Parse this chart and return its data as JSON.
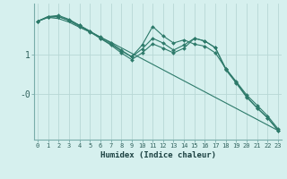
{
  "xlabel": "Humidex (Indice chaleur)",
  "background_color": "#d6f0ee",
  "grid_color": "#b8d8d5",
  "line_color": "#2d7a6a",
  "x_values": [
    0,
    1,
    2,
    3,
    4,
    5,
    6,
    7,
    8,
    9,
    10,
    11,
    12,
    13,
    14,
    15,
    16,
    17,
    18,
    19,
    20,
    21,
    22,
    23
  ],
  "series": [
    [
      1.85,
      1.95,
      1.92,
      1.83,
      1.7,
      1.58,
      1.45,
      1.32,
      1.18,
      1.04,
      0.9,
      0.76,
      0.62,
      0.48,
      0.34,
      0.2,
      0.06,
      -0.08,
      -0.22,
      -0.36,
      -0.5,
      -0.64,
      -0.78,
      -0.92
    ],
    [
      1.85,
      1.97,
      1.97,
      1.88,
      1.75,
      1.6,
      1.45,
      1.3,
      1.12,
      0.95,
      1.25,
      1.72,
      1.48,
      1.3,
      1.38,
      1.27,
      1.22,
      1.05,
      0.65,
      0.32,
      -0.02,
      -0.28,
      -0.55,
      -0.88
    ],
    [
      1.85,
      1.97,
      2.0,
      1.9,
      1.75,
      1.6,
      1.42,
      1.25,
      1.05,
      0.88,
      1.05,
      1.28,
      1.17,
      1.05,
      1.17,
      1.42,
      1.35,
      1.18,
      0.65,
      0.3,
      -0.06,
      -0.35,
      -0.6,
      -0.92
    ],
    [
      1.85,
      1.95,
      1.97,
      1.87,
      1.72,
      1.58,
      1.42,
      1.27,
      1.1,
      0.95,
      1.15,
      1.42,
      1.3,
      1.12,
      1.25,
      1.42,
      1.35,
      1.18,
      0.62,
      0.28,
      -0.08,
      -0.35,
      -0.6,
      -0.92
    ]
  ],
  "ylim": [
    -1.15,
    2.3
  ],
  "xlim": [
    -0.3,
    23.3
  ],
  "ytick_vals": [
    1.0,
    0.0
  ],
  "ytick_labels": [
    "1",
    "-0"
  ],
  "xtick_labels": [
    "0",
    "1",
    "2",
    "3",
    "4",
    "5",
    "6",
    "7",
    "8",
    "9",
    "10",
    "11",
    "12",
    "13",
    "14",
    "15",
    "16",
    "17",
    "18",
    "19",
    "20",
    "21",
    "22",
    "23"
  ]
}
